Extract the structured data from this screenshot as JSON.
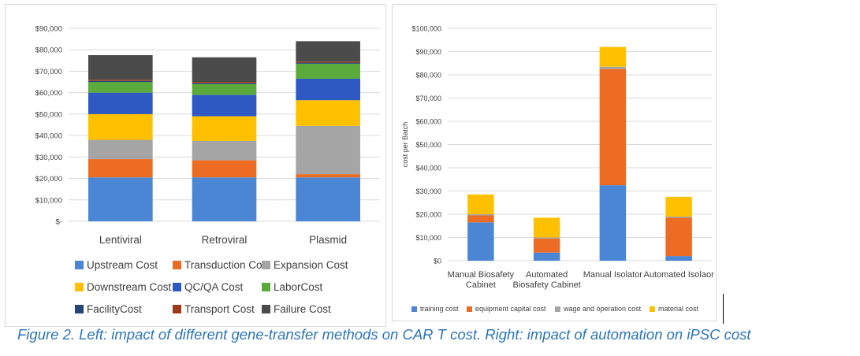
{
  "caption": "Figure 2. Left: impact of different gene-transfer methods on CAR T cost. Right: impact of automation on iPSC cost",
  "chart_data": [
    {
      "type": "bar",
      "stacked": true,
      "title": "",
      "xlabel": "",
      "ylabel": "",
      "ylim": [
        0,
        90000
      ],
      "y_ticks": [
        "$-",
        "$10,000",
        "$20,000",
        "$30,000",
        "$40,000",
        "$50,000",
        "$60,000",
        "$70,000",
        "$80,000",
        "$90,000"
      ],
      "categories": [
        "Lentiviral",
        "Retroviral",
        "Plasmid"
      ],
      "grid": true,
      "legend_position": "bottom",
      "series": [
        {
          "name": "Upstream Cost",
          "color": "#4a86d4",
          "values": [
            20500,
            20500,
            20500
          ]
        },
        {
          "name": "Transduction Cost",
          "color": "#ed6c24",
          "values": [
            8500,
            8000,
            1500
          ]
        },
        {
          "name": "Expansion Cost",
          "color": "#a5a5a5",
          "values": [
            9000,
            9000,
            22500
          ]
        },
        {
          "name": "Downstream Cost",
          "color": "#ffc000",
          "values": [
            12000,
            11500,
            12000
          ]
        },
        {
          "name": "QC/QA Cost",
          "color": "#2e58c2",
          "values": [
            10000,
            10000,
            10000
          ]
        },
        {
          "name": "LaborCost",
          "color": "#5aab3c",
          "values": [
            5000,
            5000,
            7000
          ]
        },
        {
          "name": "FacilityCost",
          "color": "#264478",
          "values": [
            500,
            500,
            500
          ]
        },
        {
          "name": "Transport Cost",
          "color": "#9e3a17",
          "values": [
            500,
            500,
            500
          ]
        },
        {
          "name": "Failure Cost",
          "color": "#4b4b4b",
          "values": [
            11500,
            11500,
            9500
          ]
        }
      ]
    },
    {
      "type": "bar",
      "stacked": true,
      "title": "",
      "xlabel": "",
      "ylabel": "cost per Batch",
      "ylim": [
        0,
        100000
      ],
      "y_ticks": [
        "$0",
        "$10,000",
        "$20,000",
        "$30,000",
        "$40,000",
        "$50,000",
        "$60,000",
        "$70,000",
        "$80,000",
        "$90,000",
        "$100,000"
      ],
      "categories": [
        [
          "Manual Biosafety",
          "Cabinet"
        ],
        [
          "Automated",
          "Biosafety Cabinet"
        ],
        [
          "Manual Isolator"
        ],
        [
          "Automated Isolaor"
        ]
      ],
      "grid": true,
      "legend_position": "bottom",
      "series": [
        {
          "name": "training cost",
          "color": "#4a86d4",
          "values": [
            16500,
            3500,
            32500,
            2000
          ]
        },
        {
          "name": "equipment capital cost",
          "color": "#ed6c24",
          "values": [
            3000,
            6000,
            50000,
            16500
          ]
        },
        {
          "name": "wage and operation cost",
          "color": "#a5a5a5",
          "values": [
            500,
            500,
            1000,
            500
          ]
        },
        {
          "name": "material cost",
          "color": "#ffc000",
          "values": [
            8500,
            8500,
            8500,
            8500
          ]
        }
      ]
    }
  ]
}
